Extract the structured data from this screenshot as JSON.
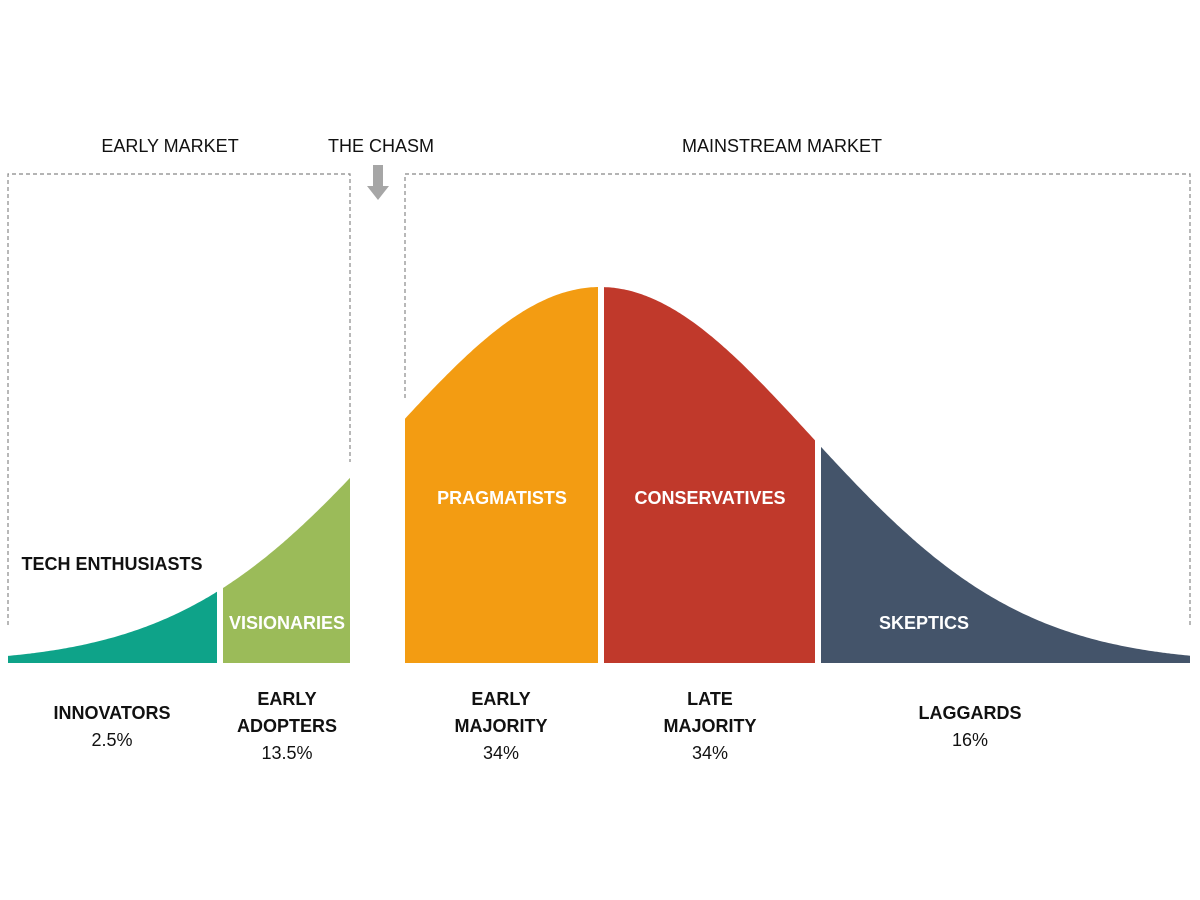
{
  "header": {
    "early_market": "EARLY MARKET",
    "chasm": "THE CHASM",
    "mainstream_market": "MAINSTREAM MARKET"
  },
  "segments": [
    {
      "persona": "TECH ENTHUSIASTS",
      "name": [
        "INNOVATORS"
      ],
      "share": "2.5%"
    },
    {
      "persona": "VISIONARIES",
      "name": [
        "EARLY",
        "ADOPTERS"
      ],
      "share": "13.5%"
    },
    {
      "persona": "PRAGMATISTS",
      "name": [
        "EARLY",
        "MAJORITY"
      ],
      "share": "34%"
    },
    {
      "persona": "CONSERVATIVES",
      "name": [
        "LATE",
        "MAJORITY"
      ],
      "share": "34%"
    },
    {
      "persona": "SKEPTICS",
      "name": [
        "LAGGARDS"
      ],
      "share": "16%"
    }
  ]
}
